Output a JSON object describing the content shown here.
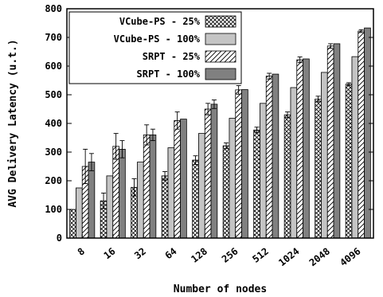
{
  "chart_data": {
    "type": "bar",
    "title": "",
    "xlabel": "Number of nodes",
    "ylabel": "AVG Delivery Latency (u.t.)",
    "ylim": [
      0,
      800
    ],
    "yticks": [
      "0",
      "100",
      "200",
      "300",
      "400",
      "500",
      "600",
      "700",
      "800"
    ],
    "grid": false,
    "legend_position": "top-left",
    "categories": [
      "8",
      "16",
      "32",
      "64",
      "128",
      "256",
      "512",
      "1024",
      "2048",
      "4096"
    ],
    "series": [
      {
        "name": "VCube-PS - 25%",
        "pattern": "crosshatch",
        "values": [
          100,
          130,
          177,
          217,
          272,
          322,
          377,
          430,
          485,
          537
        ],
        "errors": [
          0,
          27,
          30,
          15,
          15,
          10,
          10,
          10,
          10,
          5
        ]
      },
      {
        "name": "VCube-PS - 100%",
        "pattern": "light-gray",
        "values": [
          175,
          217,
          265,
          315,
          365,
          418,
          470,
          525,
          578,
          633
        ],
        "errors": [
          0,
          0,
          0,
          0,
          0,
          0,
          0,
          0,
          0,
          0
        ]
      },
      {
        "name": "SRPT - 25%",
        "pattern": "diagonal-lines",
        "values": [
          250,
          320,
          360,
          410,
          450,
          517,
          565,
          622,
          670,
          722
        ],
        "errors": [
          60,
          45,
          35,
          30,
          20,
          15,
          10,
          10,
          8,
          5
        ]
      },
      {
        "name": "SRPT - 100%",
        "pattern": "dark-gray",
        "values": [
          265,
          310,
          360,
          415,
          467,
          518,
          572,
          625,
          678,
          733
        ],
        "errors": [
          30,
          30,
          20,
          0,
          15,
          0,
          0,
          0,
          0,
          0
        ]
      }
    ],
    "colors": {
      "light_gray": "#c4c4c4",
      "dark_gray": "#808080",
      "stroke": "#000000"
    }
  }
}
